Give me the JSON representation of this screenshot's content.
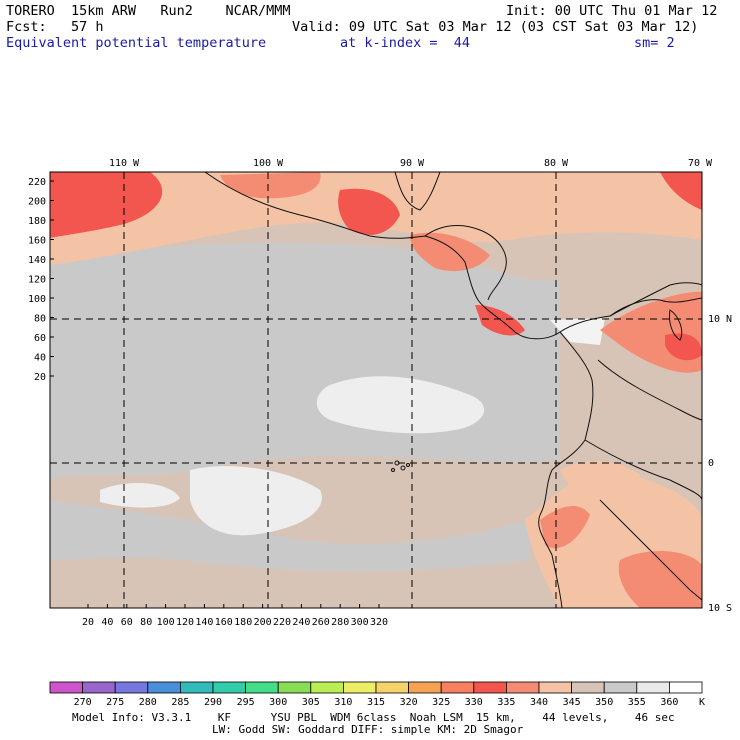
{
  "header": {
    "model": "TORERO  15km ARW   Run2    NCAR/MMM",
    "init": "Init: 00 UTC Thu 01 Mar 12",
    "forecast": "Fcst:   57 h",
    "valid": "Valid: 09 UTC Sat 03 Mar 12 (03 CST Sat 03 Mar 12)",
    "field": "Equivalent potential temperature",
    "level": "at k-index =  44",
    "smoothing": "sm= 2"
  },
  "map": {
    "lon_labels": [
      "110 W",
      "100 W",
      "90 W",
      "80 W",
      "70 W"
    ],
    "lat_labels": [
      "10 N",
      "0",
      "10 S"
    ],
    "y_ticks": [
      "220",
      "200",
      "180",
      "160",
      "140",
      "120",
      "100",
      "80",
      "60",
      "40",
      "20"
    ],
    "x_ticks": [
      "20",
      "40",
      "60",
      "80",
      "100",
      "120",
      "140",
      "160",
      "180",
      "200",
      "220",
      "240",
      "260",
      "280",
      "300",
      "320"
    ]
  },
  "colorbar": {
    "unit": "K",
    "labels": [
      "270",
      "275",
      "280",
      "285",
      "290",
      "295",
      "300",
      "305",
      "310",
      "315",
      "320",
      "325",
      "330",
      "335",
      "340",
      "345",
      "350",
      "355",
      "360"
    ],
    "colors": [
      "#cc55cc",
      "#9966cc",
      "#7777e0",
      "#4a90d8",
      "#33bbbb",
      "#33ccaa",
      "#44dd88",
      "#88dd55",
      "#bbee55",
      "#eeee66",
      "#f6d26a",
      "#f5a352",
      "#f68060",
      "#f2564f",
      "#f48c74",
      "#f4c3a6",
      "#d8c4b6",
      "#c9c9c9",
      "#e9e9e9",
      "#ffffff"
    ]
  },
  "footer": {
    "line1": "Model Info: V3.3.1    KF      YSU PBL  WDM 6class  Noah LSM  15 km,    44 levels,    46 sec",
    "line2": "LW: Godd SW: Goddard DIFF: simple KM: 2D Smagor"
  }
}
